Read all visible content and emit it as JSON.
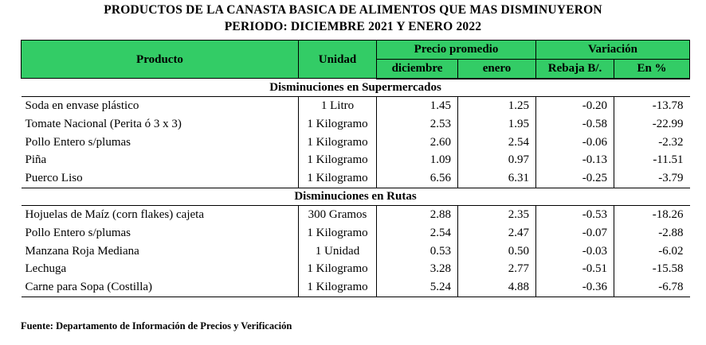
{
  "title_line1": "PRODUCTOS DE LA CANASTA BASICA DE ALIMENTOS QUE MAS DISMINUYERON",
  "title_line2": "PERIODO: DICIEMBRE 2021 Y ENERO 2022",
  "header": {
    "producto": "Producto",
    "unidad": "Unidad",
    "precio_promedio": "Precio promedio",
    "variacion": "Variación",
    "diciembre": "diciembre",
    "enero": "enero",
    "rebaja": "Rebaja B/.",
    "en_pct": "En %"
  },
  "sections": [
    {
      "title": "Disminuciones en Supermercados",
      "rows": [
        {
          "producto": "Soda en envase plástico",
          "unidad": "1 Litro",
          "diciembre": "1.45",
          "enero": "1.25",
          "rebaja": "-0.20",
          "pct": "-13.78"
        },
        {
          "producto": "Tomate Nacional (Perita ó 3 x 3)",
          "unidad": "1 Kilogramo",
          "diciembre": "2.53",
          "enero": "1.95",
          "rebaja": "-0.58",
          "pct": "-22.99"
        },
        {
          "producto": "Pollo Entero s/plumas",
          "unidad": "1 Kilogramo",
          "diciembre": "2.60",
          "enero": "2.54",
          "rebaja": "-0.06",
          "pct": "-2.32"
        },
        {
          "producto": "Piña",
          "unidad": "1 Kilogramo",
          "diciembre": "1.09",
          "enero": "0.97",
          "rebaja": "-0.13",
          "pct": "-11.51"
        },
        {
          "producto": "Puerco Liso",
          "unidad": "1 Kilogramo",
          "diciembre": "6.56",
          "enero": "6.31",
          "rebaja": "-0.25",
          "pct": "-3.79"
        }
      ]
    },
    {
      "title": "Disminuciones en Rutas",
      "rows": [
        {
          "producto": "Hojuelas de Maíz (corn flakes) cajeta",
          "unidad": "300 Gramos",
          "diciembre": "2.88",
          "enero": "2.35",
          "rebaja": "-0.53",
          "pct": "-18.26"
        },
        {
          "producto": "Pollo Entero s/plumas",
          "unidad": "1 Kilogramo",
          "diciembre": "2.54",
          "enero": "2.47",
          "rebaja": "-0.07",
          "pct": "-2.88"
        },
        {
          "producto": "Manzana Roja Mediana",
          "unidad": "1 Unidad",
          "diciembre": "0.53",
          "enero": "0.50",
          "rebaja": "-0.03",
          "pct": "-6.02"
        },
        {
          "producto": "Lechuga",
          "unidad": "1 Kilogramo",
          "diciembre": "3.28",
          "enero": "2.77",
          "rebaja": "-0.51",
          "pct": "-15.58"
        },
        {
          "producto": "Carne para Sopa (Costilla)",
          "unidad": "1 Kilogramo",
          "diciembre": "5.24",
          "enero": "4.88",
          "rebaja": "-0.36",
          "pct": "-6.78"
        }
      ]
    }
  ],
  "footer": "Fuente:  Departamento de Información  de Precios y Verificación"
}
